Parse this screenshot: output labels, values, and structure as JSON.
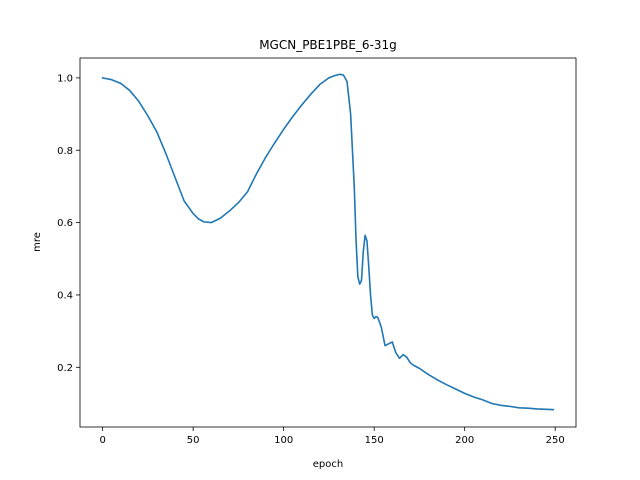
{
  "chart_data": {
    "type": "line",
    "title": "MGCN_PBE1PBE_6-31g",
    "xlabel": "epoch",
    "ylabel": "mre",
    "xlim": [
      -12.5,
      261.5
    ],
    "ylim": [
      0.035,
      1.055
    ],
    "xticks": [
      0,
      50,
      100,
      150,
      200,
      250
    ],
    "yticks": [
      0.2,
      0.4,
      0.6,
      0.8,
      1.0
    ],
    "xtick_labels": [
      "0",
      "50",
      "100",
      "150",
      "200",
      "250"
    ],
    "ytick_labels": [
      "0.2",
      "0.4",
      "0.6",
      "0.8",
      "1.0"
    ],
    "grid": false,
    "legend": "none",
    "series": [
      {
        "color": "#1f77b4",
        "x": [
          0,
          5,
          10,
          15,
          20,
          25,
          30,
          35,
          40,
          45,
          50,
          53,
          56,
          60,
          65,
          70,
          75,
          80,
          85,
          90,
          95,
          100,
          105,
          110,
          115,
          120,
          125,
          128,
          131,
          133,
          135,
          137,
          139,
          140,
          141,
          142,
          143,
          144,
          145,
          146,
          147,
          148,
          149,
          150,
          151,
          152,
          154,
          156,
          158,
          160,
          162,
          164,
          166,
          168,
          170,
          172,
          175,
          180,
          185,
          190,
          195,
          200,
          205,
          210,
          215,
          220,
          225,
          230,
          235,
          240,
          245,
          249
        ],
        "y": [
          1.0,
          0.995,
          0.985,
          0.965,
          0.935,
          0.895,
          0.85,
          0.79,
          0.725,
          0.66,
          0.625,
          0.61,
          0.602,
          0.6,
          0.612,
          0.632,
          0.655,
          0.685,
          0.735,
          0.78,
          0.82,
          0.858,
          0.893,
          0.925,
          0.955,
          0.982,
          1.0,
          1.006,
          1.01,
          1.008,
          0.99,
          0.9,
          0.7,
          0.55,
          0.45,
          0.43,
          0.44,
          0.52,
          0.565,
          0.55,
          0.48,
          0.4,
          0.345,
          0.335,
          0.34,
          0.338,
          0.31,
          0.26,
          0.265,
          0.27,
          0.24,
          0.225,
          0.235,
          0.228,
          0.212,
          0.205,
          0.197,
          0.18,
          0.165,
          0.152,
          0.14,
          0.128,
          0.118,
          0.11,
          0.1,
          0.095,
          0.092,
          0.088,
          0.087,
          0.085,
          0.084,
          0.083
        ]
      }
    ]
  }
}
